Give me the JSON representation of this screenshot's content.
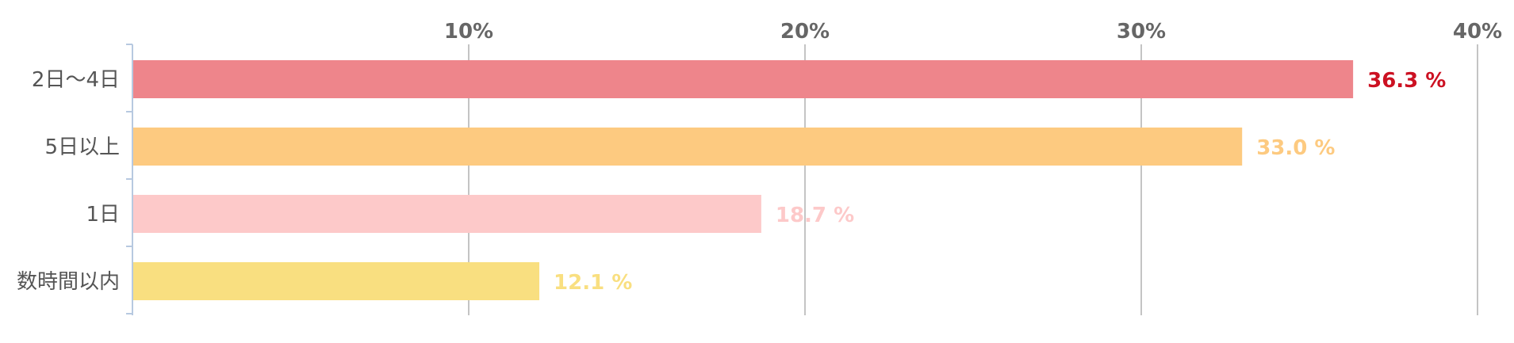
{
  "chart_data": {
    "type": "bar",
    "orientation": "horizontal",
    "categories": [
      "2日〜4日",
      "5日以上",
      "1日",
      "数時間以内"
    ],
    "values": [
      36.3,
      33.0,
      18.7,
      12.1
    ],
    "value_labels": [
      "36.3 %",
      "33.0 %",
      "18.7 %",
      "12.1 %"
    ],
    "colors": [
      "#ee858b",
      "#fdca80",
      "#fdc9c9",
      "#f9df80"
    ],
    "label_colors": [
      "#cc1122",
      "#fdca80",
      "#fdc9c9",
      "#f9df80"
    ],
    "x_ticks": [
      10,
      20,
      30,
      40
    ],
    "x_tick_labels": [
      "10%",
      "20%",
      "30%",
      "40%"
    ],
    "xlim": [
      0,
      40
    ],
    "grid": true,
    "gridline_color": "#c4c4c4",
    "axis_color": "#b7c9e0"
  }
}
